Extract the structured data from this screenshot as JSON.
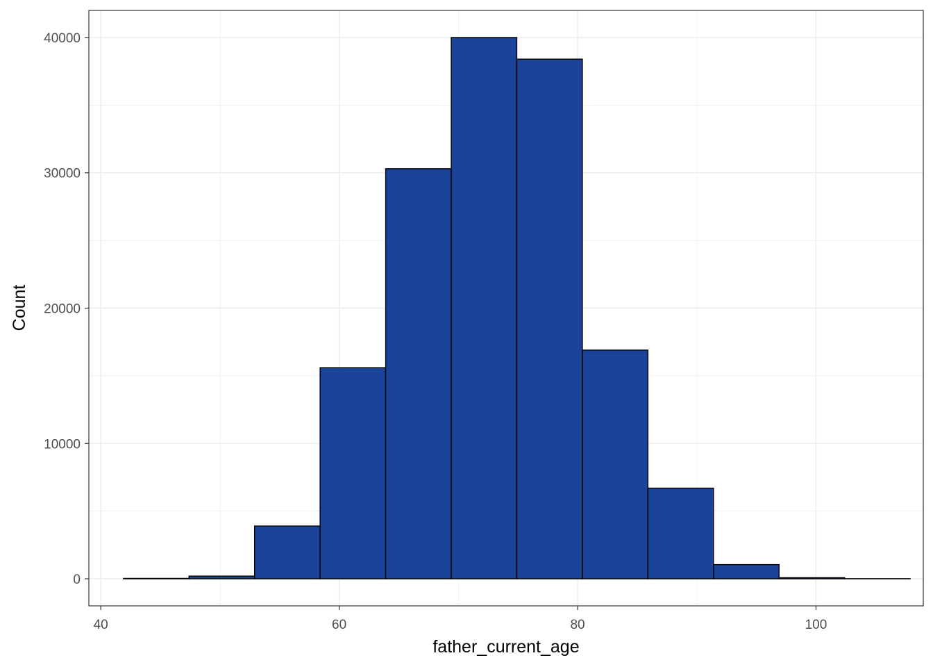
{
  "chart_data": {
    "type": "bar",
    "subtype": "histogram",
    "xlabel": "father_current_age",
    "ylabel": "Count",
    "xlim": [
      39,
      109
    ],
    "ylim": [
      -2000,
      42000
    ],
    "x_ticks": [
      40,
      60,
      80,
      100
    ],
    "y_ticks": [
      0,
      10000,
      20000,
      30000,
      40000
    ],
    "grid": true,
    "bins": [
      {
        "x0": 41.9,
        "x1": 47.4,
        "value": 30
      },
      {
        "x0": 47.4,
        "x1": 52.9,
        "value": 200
      },
      {
        "x0": 52.9,
        "x1": 58.4,
        "value": 3900
      },
      {
        "x0": 58.4,
        "x1": 63.9,
        "value": 15600
      },
      {
        "x0": 63.9,
        "x1": 69.4,
        "value": 30300
      },
      {
        "x0": 69.4,
        "x1": 74.9,
        "value": 40000
      },
      {
        "x0": 74.9,
        "x1": 80.4,
        "value": 38400
      },
      {
        "x0": 80.4,
        "x1": 85.9,
        "value": 16900
      },
      {
        "x0": 85.9,
        "x1": 91.4,
        "value": 6700
      },
      {
        "x0": 91.4,
        "x1": 96.9,
        "value": 1050
      },
      {
        "x0": 96.9,
        "x1": 102.4,
        "value": 80
      },
      {
        "x0": 102.4,
        "x1": 107.9,
        "value": 10
      }
    ],
    "colors": {
      "fill": "#1A4499",
      "outline": "#000000",
      "grid": "#EBEBEB",
      "panel_border": "#333333"
    }
  }
}
